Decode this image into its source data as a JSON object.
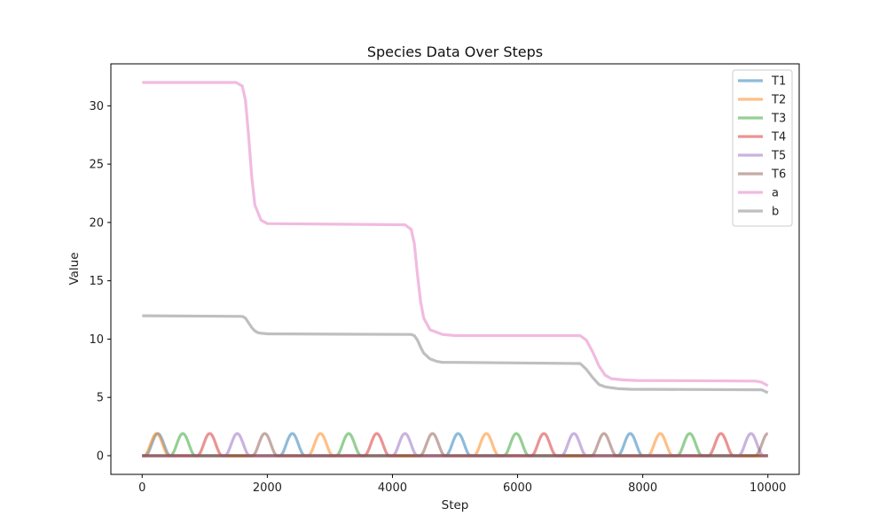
{
  "chart_data": {
    "type": "line",
    "title": "Species Data Over Steps",
    "xlabel": "Step",
    "ylabel": "Value",
    "xlim": [
      -500,
      10500
    ],
    "ylim": [
      -1.6,
      33.6
    ],
    "xticks": [
      0,
      2000,
      4000,
      6000,
      8000,
      10000
    ],
    "yticks": [
      0,
      5,
      10,
      15,
      20,
      25,
      30
    ],
    "legend_position": "top-right",
    "grid": false,
    "series": [
      {
        "name": "T1",
        "color": "#1f77b4",
        "peaks": [
          250,
          2400,
          5050,
          7800
        ],
        "amplitude": 1.9,
        "half_width": 200
      },
      {
        "name": "T2",
        "color": "#ff7f0e",
        "peaks": [
          230,
          2850,
          5500,
          8280
        ],
        "amplitude": 1.9,
        "half_width": 200
      },
      {
        "name": "T3",
        "color": "#2ca02c",
        "peaks": [
          650,
          3300,
          5980,
          8750
        ],
        "amplitude": 1.9,
        "half_width": 200
      },
      {
        "name": "T4",
        "color": "#d62728",
        "peaks": [
          1080,
          3750,
          6420,
          9250
        ],
        "amplitude": 1.9,
        "half_width": 200
      },
      {
        "name": "T5",
        "color": "#9467bd",
        "peaks": [
          1520,
          4200,
          6900,
          9730
        ],
        "amplitude": 1.9,
        "half_width": 200
      },
      {
        "name": "T6",
        "color": "#8c564b",
        "peaks": [
          1960,
          4640,
          7380,
          10000
        ],
        "amplitude": 1.9,
        "half_width": 200
      },
      {
        "name": "a",
        "color": "#e377c2",
        "x": [
          0,
          1500,
          1600,
          1650,
          1700,
          1750,
          1800,
          1900,
          2000,
          4200,
          4300,
          4350,
          4400,
          4450,
          4500,
          4600,
          4800,
          5000,
          7000,
          7100,
          7200,
          7300,
          7400,
          7500,
          7700,
          7900,
          9800,
          9900,
          10000
        ],
        "y": [
          32,
          32,
          31.7,
          30.5,
          27.5,
          24,
          21.5,
          20.2,
          19.9,
          19.8,
          19.4,
          18.2,
          15.5,
          13.2,
          11.8,
          10.8,
          10.4,
          10.3,
          10.3,
          9.9,
          8.9,
          7.7,
          6.9,
          6.6,
          6.5,
          6.45,
          6.4,
          6.3,
          6.0
        ]
      },
      {
        "name": "b",
        "color": "#7f7f7f",
        "x": [
          0,
          1600,
          1650,
          1700,
          1750,
          1800,
          1850,
          1900,
          2000,
          4300,
          4350,
          4400,
          4450,
          4500,
          4600,
          4700,
          4800,
          5000,
          7000,
          7100,
          7200,
          7300,
          7400,
          7600,
          7800,
          9900,
          10000
        ],
        "y": [
          12,
          11.95,
          11.8,
          11.4,
          11.0,
          10.7,
          10.55,
          10.5,
          10.45,
          10.4,
          10.3,
          9.9,
          9.3,
          8.8,
          8.3,
          8.1,
          8.0,
          8.0,
          7.9,
          7.4,
          6.7,
          6.1,
          5.9,
          5.75,
          5.7,
          5.65,
          5.4
        ]
      }
    ]
  }
}
